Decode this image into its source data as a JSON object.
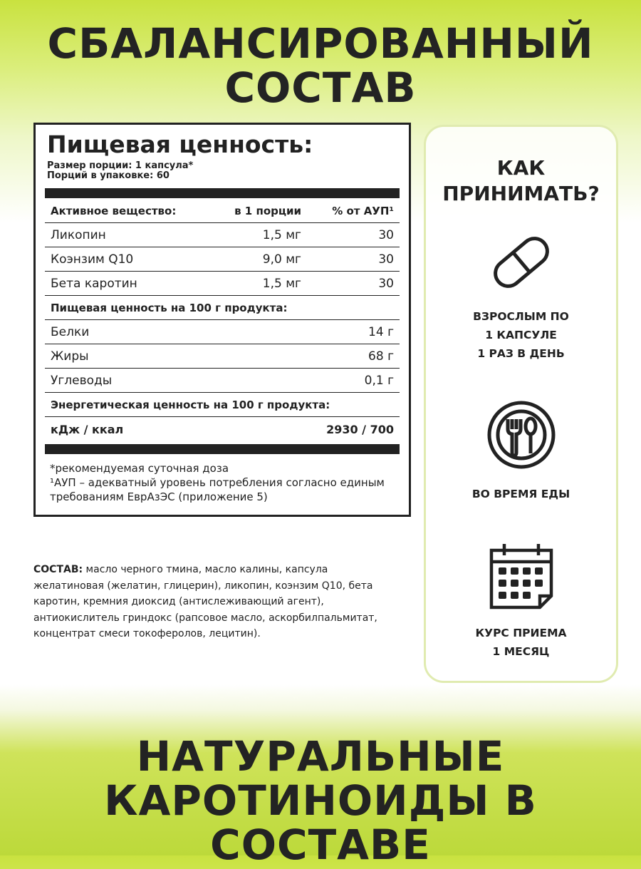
{
  "header": {
    "line1": "СБАЛАНСИРОВАННЫЙ",
    "line2": "СОСТАВ"
  },
  "nutrition": {
    "title": "Пищевая ценность:",
    "serving_size": "Размер порции: 1 капсула*",
    "servings": "Порций в упаковке: 60",
    "columns": [
      "Активное вещество:",
      "в 1 порции",
      "% от АУП¹"
    ],
    "active": [
      {
        "name": "Ликопин",
        "amount": "1,5 мг",
        "pct": "30"
      },
      {
        "name": "Коэнзим Q10",
        "amount": "9,0 мг",
        "pct": "30"
      },
      {
        "name": "Бета каротин",
        "amount": "1,5 мг",
        "pct": "30"
      }
    ],
    "per100_title": "Пищевая ценность на 100 г продукта:",
    "per100": [
      {
        "name": "Белки",
        "value": "14 г"
      },
      {
        "name": "Жиры",
        "value": "68 г"
      },
      {
        "name": "Углеводы",
        "value": "0,1 г"
      }
    ],
    "energy_title": "Энергетическая ценность на 100 г продукта:",
    "energy": {
      "name": "кДж / ккал",
      "value": "2930 / 700"
    },
    "footnote1": "*рекомендуемая суточная доза",
    "footnote2": "¹АУП – адекватный уровень потребления согласно единым требованиям ЕврАзЭС (приложение 5)"
  },
  "composition": {
    "label": "СОСТАВ:",
    "text": " масло черного тмина, масло калины, капсула желатиновая (желатин, глицерин), ликопин, коэнзим Q10, бета каротин, кремния диоксид (антислеживающий агент), антиокислитель гриндокс (рапсовое масло, аскорбилпальмитат, концентрат смеси токоферолов, лецитин)."
  },
  "howto": {
    "title1": "КАК",
    "title2": "ПРИНИМАТЬ?",
    "items": [
      {
        "icon": "capsule-icon",
        "l1": "ВЗРОСЛЫМ ПО",
        "l2": "1 КАПСУЛЕ",
        "l3": "1 РАЗ В ДЕНЬ"
      },
      {
        "icon": "fork-spoon-icon",
        "l1": "ВО ВРЕМЯ ЕДЫ"
      },
      {
        "icon": "calendar-icon",
        "l1": "КУРС ПРИЕМА",
        "l2": "1 МЕСЯЦ"
      }
    ]
  },
  "footer": {
    "line1": "НАТУРАЛЬНЫЕ",
    "line2": "КАРОТИНОИДЫ В СОСТАВЕ"
  }
}
